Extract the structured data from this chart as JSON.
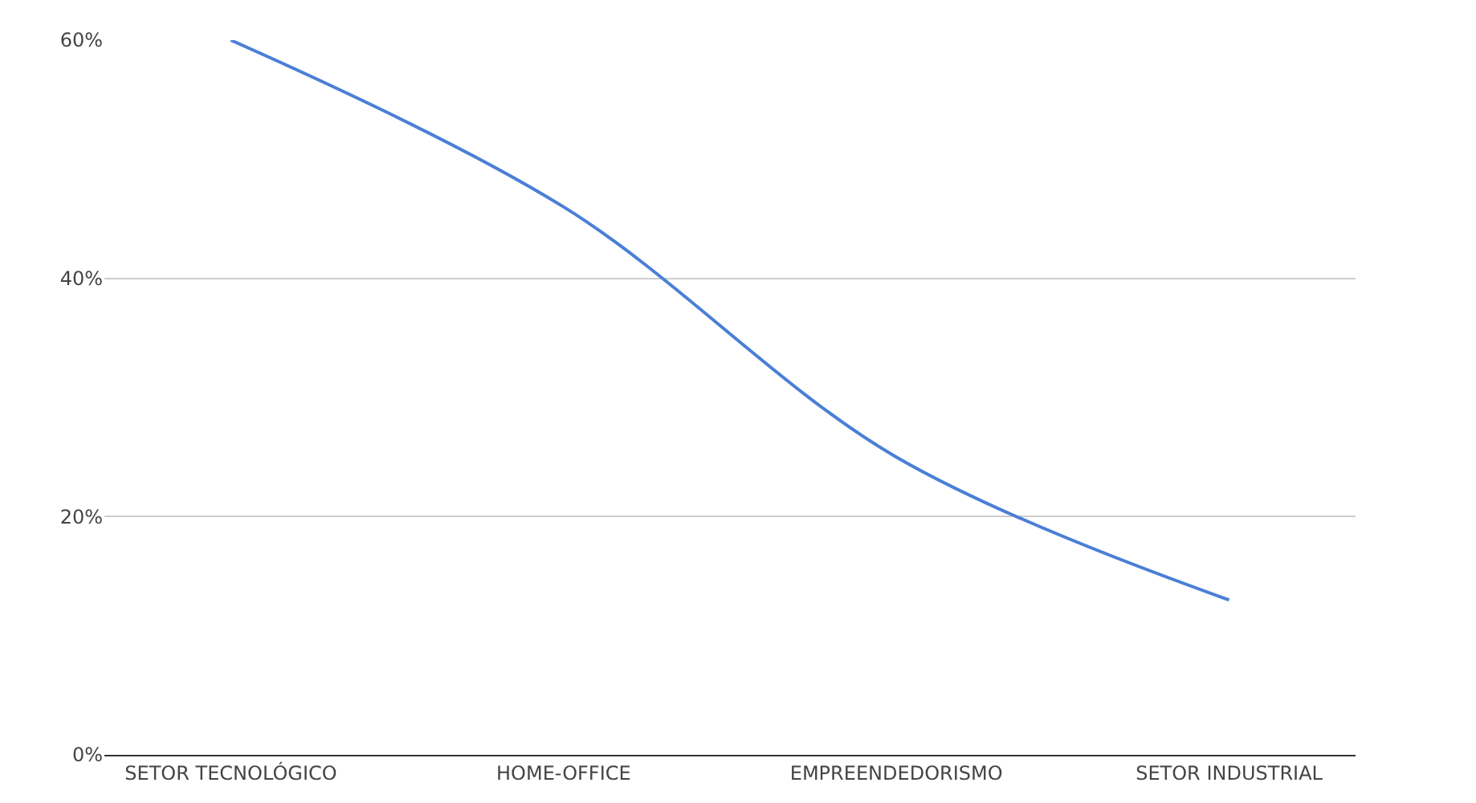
{
  "chart_data": {
    "type": "line",
    "categories": [
      "SETOR TECNOLÓGICO",
      "HOME-OFFICE",
      "EMPREENDEDORISMO",
      "SETOR INDUSTRIAL"
    ],
    "series": [
      {
        "color": "#4a7fd6",
        "values": [
          60,
          46,
          25,
          13
        ]
      }
    ],
    "ylim": [
      0,
      60
    ],
    "yticks": [
      {
        "value": 0,
        "label": "0%"
      },
      {
        "value": 20,
        "label": "20%"
      },
      {
        "value": 40,
        "label": "40%"
      },
      {
        "value": 60,
        "label": "60%"
      }
    ],
    "grid": "y",
    "marker": "none",
    "line_style": "solid"
  }
}
